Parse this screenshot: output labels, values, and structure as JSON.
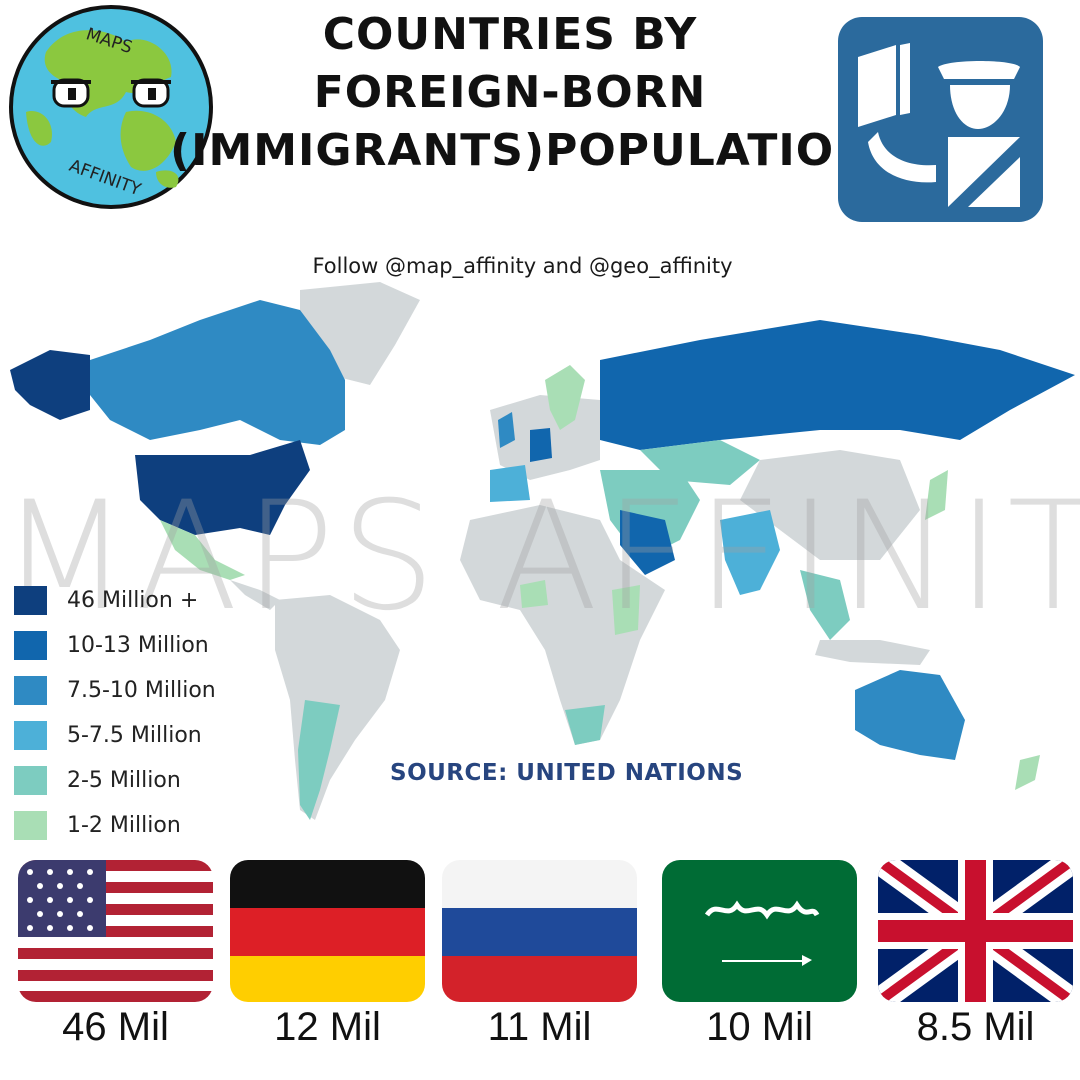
{
  "header": {
    "title_lines": [
      "COUNTRIES BY",
      "FOREIGN-BORN",
      "(IMMIGRANTS)POPULATION"
    ],
    "subtitle": "Follow @map_affinity and @geo_affinity"
  },
  "logo": {
    "top_text": "MAPS",
    "bottom_text": "AFFINITY"
  },
  "badge": {
    "icon": "immigration-officer-icon",
    "color": "#2b6a9d"
  },
  "watermark": "MAPS AFFINITY",
  "legend": [
    {
      "label": "46 Million +",
      "color": "#0e3f7e"
    },
    {
      "label": "10-13 Million",
      "color": "#1166ad"
    },
    {
      "label": "7.5-10 Million",
      "color": "#2f8ac3"
    },
    {
      "label": "5-7.5 Million",
      "color": "#4db0d8"
    },
    {
      "label": "2-5 Million",
      "color": "#7dccc0"
    },
    {
      "label": "1-2 Million",
      "color": "#a9deb5"
    }
  ],
  "source": "SOURCE: UNITED NATIONS",
  "top_countries": [
    {
      "country": "United States",
      "value": "46 Mil"
    },
    {
      "country": "Germany",
      "value": "12 Mil"
    },
    {
      "country": "Russia",
      "value": "11 Mil"
    },
    {
      "country": "Saudi Arabia",
      "value": "10 Mil"
    },
    {
      "country": "United Kingdom",
      "value": "8.5 Mil"
    }
  ],
  "colors": {
    "no_data_land": "#d3d8da",
    "ocean": "#ffffff"
  }
}
